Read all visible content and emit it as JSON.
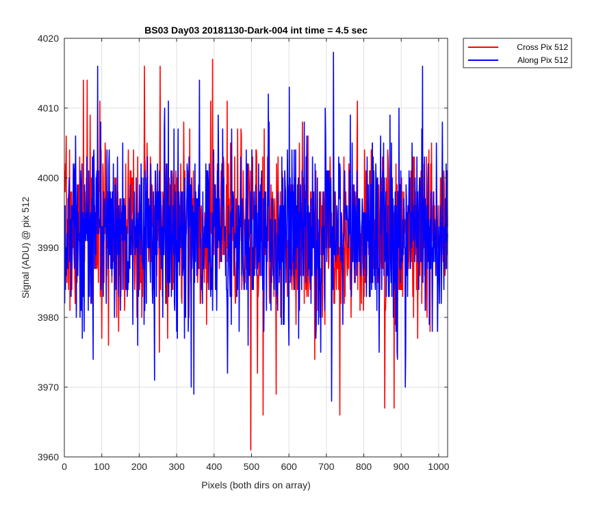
{
  "chart_data": {
    "type": "line",
    "title": "BS03 Day03 20181130-Dark-004 int time = 4.5 sec",
    "xlabel": "Pixels (both dirs on array)",
    "ylabel": "Signal (ADU) @ pix 512",
    "xlim": [
      0,
      1024
    ],
    "ylim": [
      3960,
      4020
    ],
    "xticks": [
      0,
      100,
      200,
      300,
      400,
      500,
      600,
      700,
      800,
      900,
      1000
    ],
    "yticks": [
      3960,
      3970,
      3980,
      3990,
      4000,
      4010,
      4020
    ],
    "grid": true,
    "legend_position": "outside-top-right",
    "noise": {
      "points": 1024,
      "mean": 3992.5
    },
    "series": [
      {
        "name": "Cross Pix 512",
        "color": "#ff0000",
        "std": 6.0,
        "seed": 7,
        "extremes": [
          {
            "x": 50,
            "y": 4014
          },
          {
            "x": 60,
            "y": 4014
          },
          {
            "x": 213,
            "y": 4016
          },
          {
            "x": 255,
            "y": 4016
          },
          {
            "x": 395,
            "y": 4017
          },
          {
            "x": 497,
            "y": 3961
          },
          {
            "x": 530,
            "y": 3966
          },
          {
            "x": 735,
            "y": 3966
          },
          {
            "x": 855,
            "y": 3967
          },
          {
            "x": 880,
            "y": 3967
          },
          {
            "x": 515,
            "y": 3972
          },
          {
            "x": 565,
            "y": 3969
          }
        ]
      },
      {
        "name": "Along Pix 512",
        "color": "#0000ff",
        "std": 6.5,
        "seed": 13,
        "extremes": [
          {
            "x": 88,
            "y": 4016
          },
          {
            "x": 718,
            "y": 4018
          },
          {
            "x": 956,
            "y": 4016
          },
          {
            "x": 76,
            "y": 3974
          },
          {
            "x": 240,
            "y": 3971
          },
          {
            "x": 338,
            "y": 3970
          },
          {
            "x": 345,
            "y": 3969
          },
          {
            "x": 713,
            "y": 3968
          },
          {
            "x": 435,
            "y": 3972
          },
          {
            "x": 910,
            "y": 3970
          },
          {
            "x": 360,
            "y": 4014
          },
          {
            "x": 600,
            "y": 4013
          }
        ]
      }
    ]
  }
}
